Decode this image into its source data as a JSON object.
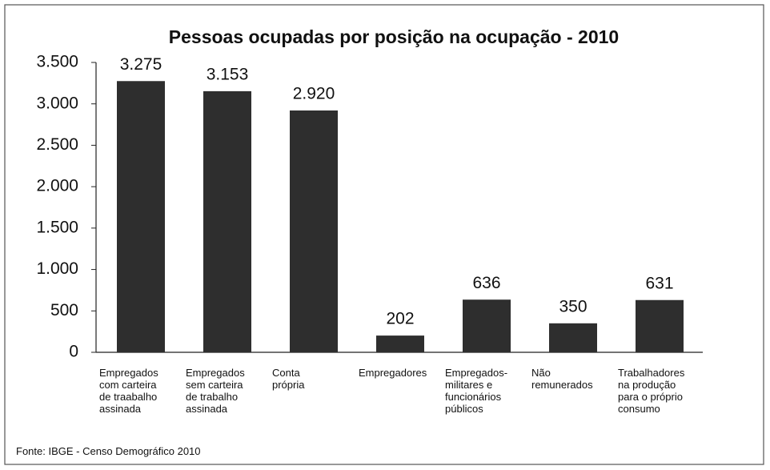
{
  "chart_data": {
    "type": "bar",
    "title": "Pessoas ocupadas por posição na ocupação - 2010",
    "categories": [
      "Empregados\ncom carteira\nde traabalho\nassinada",
      "Empregados\nsem carteira\nde trabalho\nassinada",
      "Conta\nprópria",
      "Empregadores",
      "Empregados-\nmilitares e\nfuncionários\npúblicos",
      "Não\nremunerados",
      "Trabalhadores\nna produção\npara o próprio\nconsumo"
    ],
    "values": [
      3275,
      3153,
      2920,
      202,
      636,
      350,
      631
    ],
    "value_labels": [
      "3.275",
      "3.153",
      "2.920",
      "202",
      "636",
      "350",
      "631"
    ],
    "color": "#2e2e2e",
    "ylim": [
      0,
      3500
    ],
    "yticks": [
      0,
      500,
      {
        "value": 1000,
        "label": "1.000"
      },
      {
        "value": 1500,
        "label": "1.500"
      },
      {
        "value": 2000,
        "label": "2.000"
      },
      {
        "value": 2500,
        "label": "2.500"
      },
      {
        "value": 3000,
        "label": "3.000"
      },
      {
        "value": 3500,
        "label": "3.500"
      }
    ],
    "source": "Fonte: IBGE - Censo Demográfico 2010"
  }
}
